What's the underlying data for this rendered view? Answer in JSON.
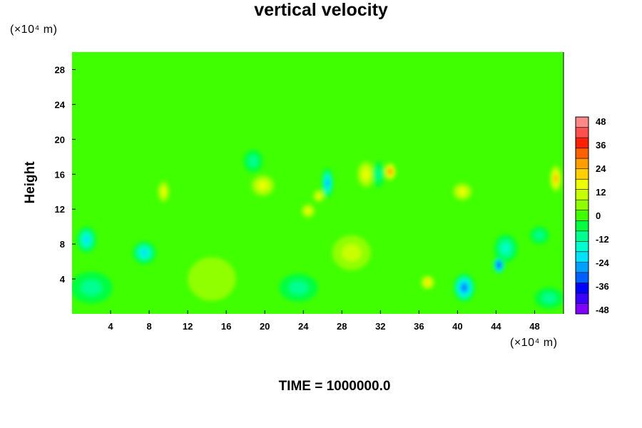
{
  "chart_data": {
    "type": "heatmap",
    "title": "vertical velocity",
    "ylabel": "Height",
    "x_unit": "(×10⁴ m)",
    "y_unit": "(×10⁴ m)",
    "footer": "TIME = 1000000.0",
    "xlim": [
      0,
      51
    ],
    "ylim": [
      0,
      30
    ],
    "x_ticks": [
      4,
      8,
      12,
      16,
      20,
      24,
      28,
      32,
      36,
      40,
      44,
      48
    ],
    "y_ticks": [
      4,
      8,
      12,
      16,
      20,
      24,
      28
    ],
    "colorbar": {
      "range": [
        -48,
        48
      ],
      "ticks": [
        48,
        36,
        24,
        12,
        0,
        -12,
        -24,
        -36,
        -48
      ],
      "colors": [
        "#7f00ff",
        "#3c00ff",
        "#0000ff",
        "#0060ff",
        "#00a0ff",
        "#00e0ff",
        "#00ffd0",
        "#00ff90",
        "#00ff40",
        "#40ff00",
        "#90ff00",
        "#c8ff00",
        "#f0ff00",
        "#ffd000",
        "#ffa000",
        "#ff6000",
        "#ff2000",
        "#ff5050",
        "#ff8888"
      ]
    },
    "features": [
      {
        "x": 1.5,
        "y": 8.5,
        "value": -18,
        "sx": 1.0,
        "sy": 1.5
      },
      {
        "x": 7.5,
        "y": 7,
        "value": -20,
        "sx": 1.2,
        "sy": 1.3
      },
      {
        "x": 2,
        "y": 3,
        "value": -10,
        "sx": 2.2,
        "sy": 1.8
      },
      {
        "x": 9.5,
        "y": 14,
        "value": 14,
        "sx": 0.6,
        "sy": 1.2
      },
      {
        "x": 19.8,
        "y": 14.7,
        "value": 16,
        "sx": 1.2,
        "sy": 1.2
      },
      {
        "x": 18.8,
        "y": 17.5,
        "value": -10,
        "sx": 1.0,
        "sy": 1.3
      },
      {
        "x": 24.5,
        "y": 11.8,
        "value": 16,
        "sx": 0.7,
        "sy": 0.8
      },
      {
        "x": 26.5,
        "y": 15,
        "value": -24,
        "sx": 0.6,
        "sy": 1.7
      },
      {
        "x": 25.6,
        "y": 13.5,
        "value": 14,
        "sx": 0.6,
        "sy": 0.7
      },
      {
        "x": 30.5,
        "y": 16,
        "value": 16,
        "sx": 0.9,
        "sy": 1.5
      },
      {
        "x": 33,
        "y": 16.3,
        "value": 30,
        "sx": 0.6,
        "sy": 1.0
      },
      {
        "x": 31.8,
        "y": 16,
        "value": -12,
        "sx": 0.6,
        "sy": 1.5
      },
      {
        "x": 36.9,
        "y": 3.6,
        "value": 22,
        "sx": 0.7,
        "sy": 0.8
      },
      {
        "x": 40.7,
        "y": 3.0,
        "value": -30,
        "sx": 1.1,
        "sy": 1.6
      },
      {
        "x": 44.3,
        "y": 5.6,
        "value": -40,
        "sx": 0.6,
        "sy": 1.0
      },
      {
        "x": 45,
        "y": 7.5,
        "value": -14,
        "sx": 1.2,
        "sy": 1.6
      },
      {
        "x": 40.5,
        "y": 14,
        "value": 14,
        "sx": 1.0,
        "sy": 1.0
      },
      {
        "x": 50.2,
        "y": 15.5,
        "value": 26,
        "sx": 0.6,
        "sy": 1.5
      },
      {
        "x": 48.5,
        "y": 9,
        "value": -12,
        "sx": 1.0,
        "sy": 1.0
      },
      {
        "x": 23.5,
        "y": 3.0,
        "value": -8,
        "sx": 2.0,
        "sy": 1.6
      },
      {
        "x": 29,
        "y": 7,
        "value": 10,
        "sx": 2.0,
        "sy": 2.0
      },
      {
        "x": 49.5,
        "y": 1.8,
        "value": -10,
        "sx": 1.5,
        "sy": 1.2
      },
      {
        "x": 14.5,
        "y": 4,
        "value": 6,
        "sx": 2.5,
        "sy": 2.5
      }
    ]
  }
}
